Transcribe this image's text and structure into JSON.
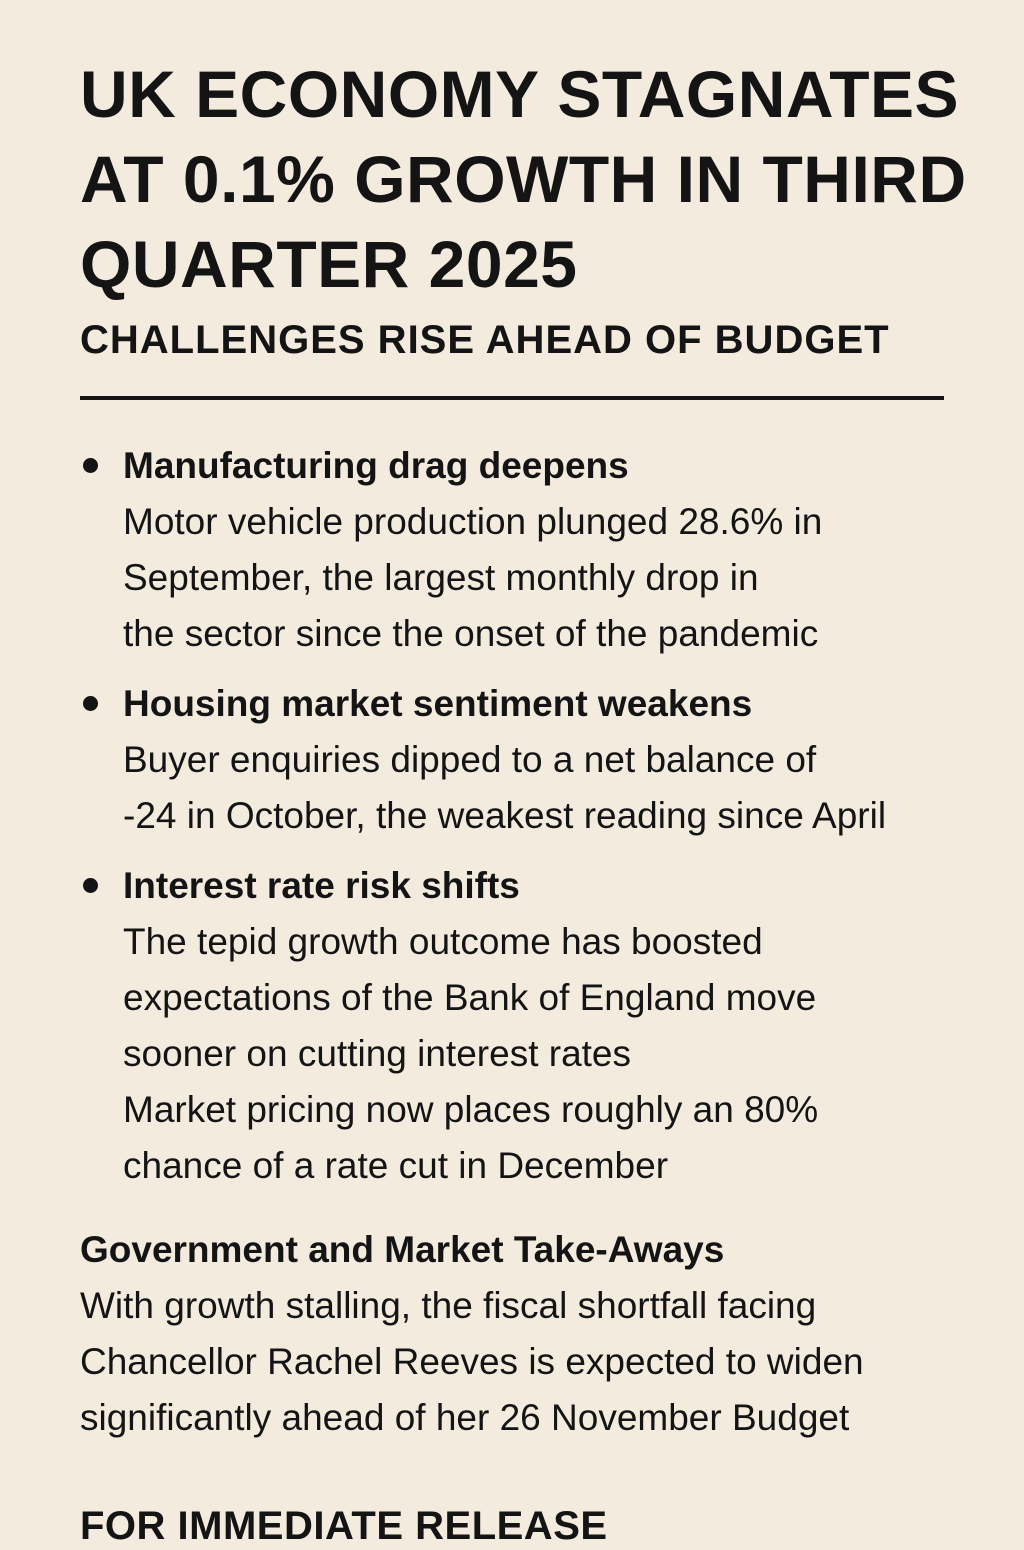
{
  "headline": [
    "UK ECONOMY STAGNATES",
    "AT 0.1% GROWTH IN THIRD",
    "QUARTER 2025"
  ],
  "subheadline": "CHALLENGES RISE AHEAD OF BUDGET",
  "bullets": [
    {
      "heading": "Manufacturing drag deepens",
      "lines": [
        "Motor vehicle production plunged 28.6% in",
        "September, the largest monthly drop in",
        "the sector since the onset of the pandemic"
      ]
    },
    {
      "heading": "Housing market sentiment weakens",
      "lines": [
        "Buyer enquiries dipped to a net balance of",
        "-24 in October, the weakest reading since April"
      ]
    },
    {
      "heading": "Interest rate risk shifts",
      "lines": [
        "The tepid growth outcome has boosted",
        "expectations of the Bank of England move",
        "sooner on cutting interest rates",
        "Market pricing now places roughly an 80%",
        "chance of a rate cut in December"
      ]
    }
  ],
  "takeaways": {
    "heading": "Government and Market Take-Aways",
    "lines": [
      "With growth stalling, the fiscal shortfall facing",
      "Chancellor Rachel Reeves is expected to widen",
      "significantly ahead of her 26 November Budget"
    ]
  },
  "release_label": "FOR IMMEDIATE RELEASE"
}
